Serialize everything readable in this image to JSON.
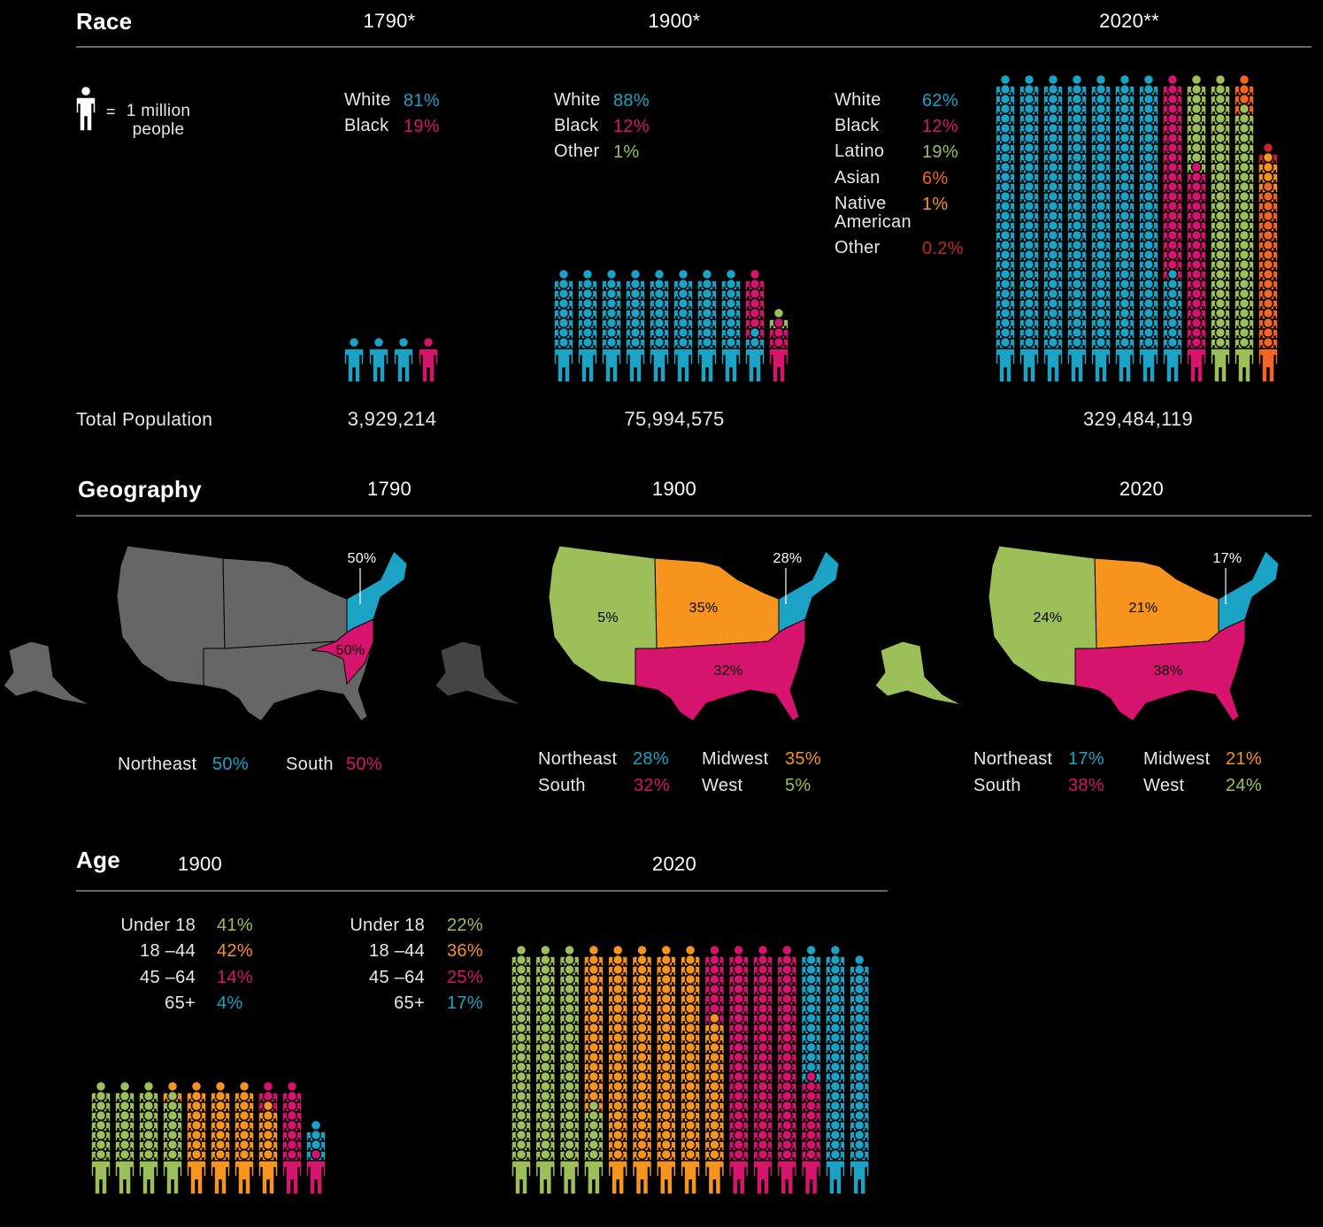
{
  "race": {
    "title": "Race",
    "unit": {
      "symbol": "=",
      "label": "1 million people"
    },
    "total_label": "Total Population",
    "years": [
      {
        "year": "1790*",
        "population": 3929214,
        "population_label": "3,929,214",
        "groups": [
          {
            "name": "White",
            "value": 81,
            "label": "81%",
            "color": "#1ba3c6"
          },
          {
            "name": "Black",
            "value": 19,
            "label": "19%",
            "color": "#d6146e"
          }
        ]
      },
      {
        "year": "1900*",
        "population": 75994575,
        "population_label": "75,994,575",
        "groups": [
          {
            "name": "White",
            "value": 88,
            "label": "88%",
            "color": "#1ba3c6"
          },
          {
            "name": "Black",
            "value": 12,
            "label": "12%",
            "color": "#d6146e"
          },
          {
            "name": "Other",
            "value": 1,
            "label": "1%",
            "color": "#9dbf5a"
          }
        ]
      },
      {
        "year": "2020**",
        "population": 329484119,
        "population_label": "329,484,119",
        "groups": [
          {
            "name": "White",
            "value": 62,
            "label": "62%",
            "color": "#1ba3c6"
          },
          {
            "name": "Black",
            "value": 12,
            "label": "12%",
            "color": "#d6146e"
          },
          {
            "name": "Latino",
            "value": 19,
            "label": "19%",
            "color": "#9dbf5a"
          },
          {
            "name": "Asian",
            "value": 6,
            "label": "6%",
            "color": "#f26522"
          },
          {
            "name": "Native American",
            "value": 1,
            "label": "1%",
            "color": "#f7941d"
          },
          {
            "name": "Other",
            "value": 0.2,
            "label": "0.2%",
            "color": "#c1272d"
          }
        ]
      }
    ]
  },
  "geography": {
    "title": "Geography",
    "years": [
      {
        "year": "1790",
        "regions": [
          {
            "name": "Northeast",
            "value": 50,
            "label": "50%",
            "color": "#1ba3c6"
          },
          {
            "name": "South",
            "value": 50,
            "label": "50%",
            "color": "#d6146e"
          }
        ]
      },
      {
        "year": "1900",
        "regions": [
          {
            "name": "Northeast",
            "value": 28,
            "label": "28%",
            "color": "#1ba3c6"
          },
          {
            "name": "Midwest",
            "value": 35,
            "label": "35%",
            "color": "#f7941d"
          },
          {
            "name": "South",
            "value": 32,
            "label": "32%",
            "color": "#d6146e"
          },
          {
            "name": "West",
            "value": 5,
            "label": "5%",
            "color": "#9dbf5a"
          }
        ]
      },
      {
        "year": "2020",
        "regions": [
          {
            "name": "Northeast",
            "value": 17,
            "label": "17%",
            "color": "#1ba3c6"
          },
          {
            "name": "Midwest",
            "value": 21,
            "label": "21%",
            "color": "#f7941d"
          },
          {
            "name": "South",
            "value": 38,
            "label": "38%",
            "color": "#d6146e"
          },
          {
            "name": "West",
            "value": 24,
            "label": "24%",
            "color": "#9dbf5a"
          }
        ]
      }
    ]
  },
  "age": {
    "title": "Age",
    "years": [
      {
        "year": "1900",
        "groups": [
          {
            "name": "Under 18",
            "value": 41,
            "label": "41%",
            "color": "#9dbf5a"
          },
          {
            "name": "18 –44",
            "value": 42,
            "label": "42%",
            "color": "#f7941d"
          },
          {
            "name": "45 –64",
            "value": 14,
            "label": "14%",
            "color": "#d6146e"
          },
          {
            "name": "65+",
            "value": 4,
            "label": "4%",
            "color": "#1ba3c6"
          }
        ]
      },
      {
        "year": "2020",
        "groups": [
          {
            "name": "Under 18",
            "value": 22,
            "label": "22%",
            "color": "#9dbf5a"
          },
          {
            "name": "18 –44",
            "value": 36,
            "label": "36%",
            "color": "#f7941d"
          },
          {
            "name": "45 –64",
            "value": 25,
            "label": "25%",
            "color": "#d6146e"
          },
          {
            "name": "65+",
            "value": 17,
            "label": "17%",
            "color": "#1ba3c6"
          }
        ]
      }
    ]
  }
}
